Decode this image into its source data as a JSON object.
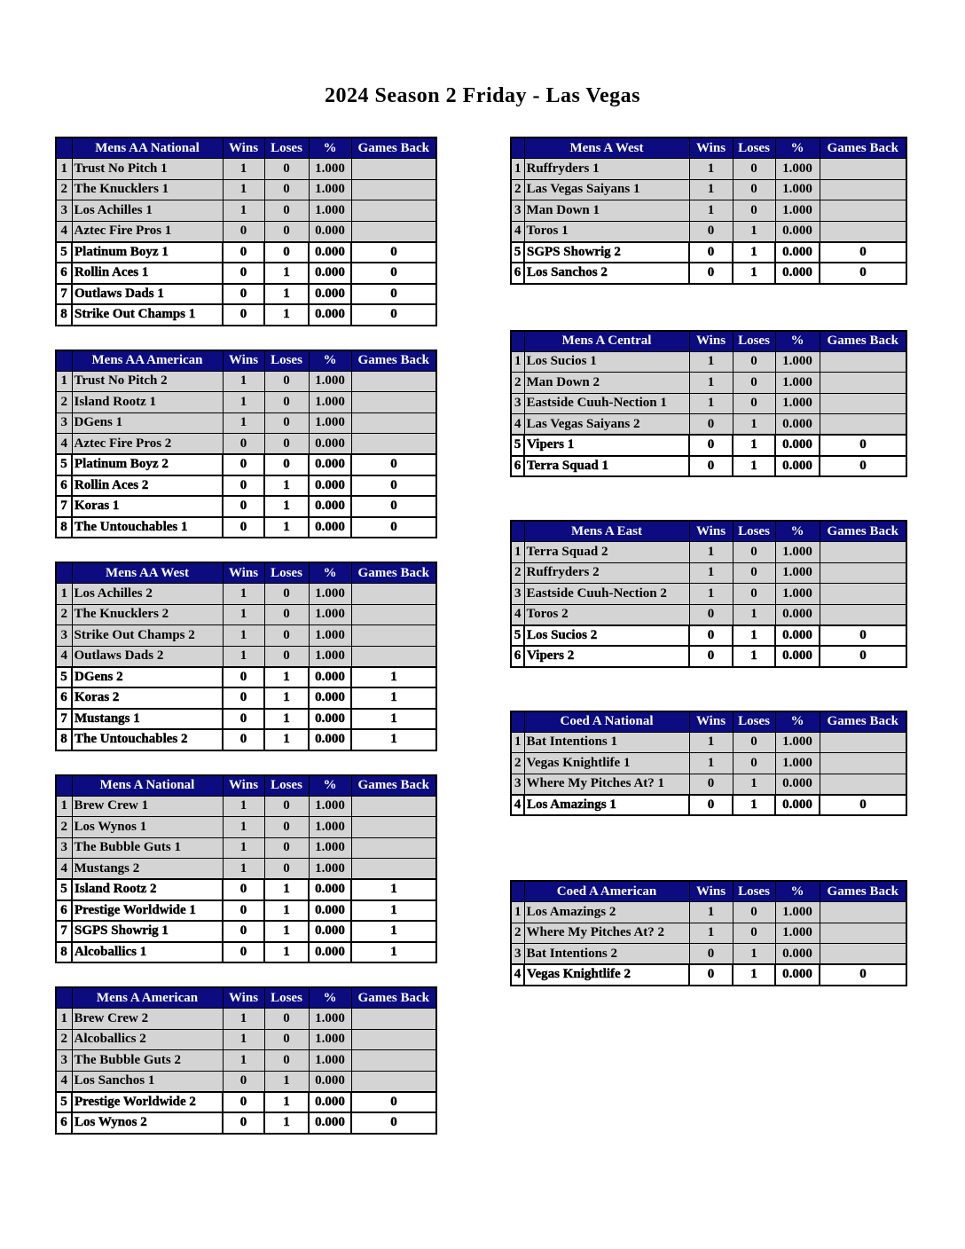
{
  "title": "2024 Season 2 Friday - Las Vegas",
  "columns": {
    "wins": "Wins",
    "loses": "Loses",
    "pct": "%",
    "games_back": "Games Back"
  },
  "colors": {
    "header_bg": "#0c0c80",
    "header_text": "#ffffff",
    "shaded_row_bg": "#d4d4d4",
    "unshaded_row_bg": "#ffffff",
    "border": "#000000"
  },
  "left_tables": [
    {
      "name": "Mens AA National",
      "rows": [
        {
          "rank": "1",
          "team": "Trust No Pitch 1",
          "wins": "1",
          "loses": "0",
          "pct": "1.000",
          "gb": "",
          "shaded": true
        },
        {
          "rank": "2",
          "team": "The Knucklers 1",
          "wins": "1",
          "loses": "0",
          "pct": "1.000",
          "gb": "",
          "shaded": true
        },
        {
          "rank": "3",
          "team": "Los Achilles 1",
          "wins": "1",
          "loses": "0",
          "pct": "1.000",
          "gb": "",
          "shaded": true
        },
        {
          "rank": "4",
          "team": "Aztec Fire Pros 1",
          "wins": "0",
          "loses": "0",
          "pct": "0.000",
          "gb": "",
          "shaded": true
        },
        {
          "rank": "5",
          "team": "Platinum Boyz 1",
          "wins": "0",
          "loses": "0",
          "pct": "0.000",
          "gb": "0",
          "shaded": false
        },
        {
          "rank": "6",
          "team": "Rollin Aces 1",
          "wins": "0",
          "loses": "1",
          "pct": "0.000",
          "gb": "0",
          "shaded": false
        },
        {
          "rank": "7",
          "team": "Outlaws Dads 1",
          "wins": "0",
          "loses": "1",
          "pct": "0.000",
          "gb": "0",
          "shaded": false
        },
        {
          "rank": "8",
          "team": "Strike Out Champs 1",
          "wins": "0",
          "loses": "1",
          "pct": "0.000",
          "gb": "0",
          "shaded": false
        }
      ]
    },
    {
      "name": "Mens AA American",
      "rows": [
        {
          "rank": "1",
          "team": "Trust No Pitch 2",
          "wins": "1",
          "loses": "0",
          "pct": "1.000",
          "gb": "",
          "shaded": true
        },
        {
          "rank": "2",
          "team": "Island Rootz 1",
          "wins": "1",
          "loses": "0",
          "pct": "1.000",
          "gb": "",
          "shaded": true
        },
        {
          "rank": "3",
          "team": "DGens 1",
          "wins": "1",
          "loses": "0",
          "pct": "1.000",
          "gb": "",
          "shaded": true
        },
        {
          "rank": "4",
          "team": "Aztec Fire Pros 2",
          "wins": "0",
          "loses": "0",
          "pct": "0.000",
          "gb": "",
          "shaded": true
        },
        {
          "rank": "5",
          "team": "Platinum Boyz 2",
          "wins": "0",
          "loses": "0",
          "pct": "0.000",
          "gb": "0",
          "shaded": false
        },
        {
          "rank": "6",
          "team": "Rollin Aces 2",
          "wins": "0",
          "loses": "1",
          "pct": "0.000",
          "gb": "0",
          "shaded": false
        },
        {
          "rank": "7",
          "team": "Koras 1",
          "wins": "0",
          "loses": "1",
          "pct": "0.000",
          "gb": "0",
          "shaded": false
        },
        {
          "rank": "8",
          "team": "The Untouchables 1",
          "wins": "0",
          "loses": "1",
          "pct": "0.000",
          "gb": "0",
          "shaded": false
        }
      ]
    },
    {
      "name": "Mens AA West",
      "rows": [
        {
          "rank": "1",
          "team": "Los Achilles 2",
          "wins": "1",
          "loses": "0",
          "pct": "1.000",
          "gb": "",
          "shaded": true
        },
        {
          "rank": "2",
          "team": "The Knucklers 2",
          "wins": "1",
          "loses": "0",
          "pct": "1.000",
          "gb": "",
          "shaded": true
        },
        {
          "rank": "3",
          "team": "Strike Out Champs 2",
          "wins": "1",
          "loses": "0",
          "pct": "1.000",
          "gb": "",
          "shaded": true
        },
        {
          "rank": "4",
          "team": "Outlaws Dads 2",
          "wins": "1",
          "loses": "0",
          "pct": "1.000",
          "gb": "",
          "shaded": true
        },
        {
          "rank": "5",
          "team": "DGens 2",
          "wins": "0",
          "loses": "1",
          "pct": "0.000",
          "gb": "1",
          "shaded": false
        },
        {
          "rank": "6",
          "team": "Koras 2",
          "wins": "0",
          "loses": "1",
          "pct": "0.000",
          "gb": "1",
          "shaded": false
        },
        {
          "rank": "7",
          "team": "Mustangs 1",
          "wins": "0",
          "loses": "1",
          "pct": "0.000",
          "gb": "1",
          "shaded": false
        },
        {
          "rank": "8",
          "team": "The Untouchables 2",
          "wins": "0",
          "loses": "1",
          "pct": "0.000",
          "gb": "1",
          "shaded": false
        }
      ]
    },
    {
      "name": "Mens A National",
      "rows": [
        {
          "rank": "1",
          "team": "Brew Crew 1",
          "wins": "1",
          "loses": "0",
          "pct": "1.000",
          "gb": "",
          "shaded": true
        },
        {
          "rank": "2",
          "team": "Los Wynos 1",
          "wins": "1",
          "loses": "0",
          "pct": "1.000",
          "gb": "",
          "shaded": true
        },
        {
          "rank": "3",
          "team": "The Bubble Guts 1",
          "wins": "1",
          "loses": "0",
          "pct": "1.000",
          "gb": "",
          "shaded": true
        },
        {
          "rank": "4",
          "team": "Mustangs 2",
          "wins": "1",
          "loses": "0",
          "pct": "1.000",
          "gb": "",
          "shaded": true
        },
        {
          "rank": "5",
          "team": "Island Rootz 2",
          "wins": "0",
          "loses": "1",
          "pct": "0.000",
          "gb": "1",
          "shaded": false
        },
        {
          "rank": "6",
          "team": "Prestige Worldwide 1",
          "wins": "0",
          "loses": "1",
          "pct": "0.000",
          "gb": "1",
          "shaded": false
        },
        {
          "rank": "7",
          "team": "SGPS Showrig 1",
          "wins": "0",
          "loses": "1",
          "pct": "0.000",
          "gb": "1",
          "shaded": false
        },
        {
          "rank": "8",
          "team": "Alcoballics 1",
          "wins": "0",
          "loses": "1",
          "pct": "0.000",
          "gb": "1",
          "shaded": false
        }
      ]
    },
    {
      "name": "Mens A American",
      "rows": [
        {
          "rank": "1",
          "team": "Brew Crew 2",
          "wins": "1",
          "loses": "0",
          "pct": "1.000",
          "gb": "",
          "shaded": true
        },
        {
          "rank": "2",
          "team": "Alcoballics 2",
          "wins": "1",
          "loses": "0",
          "pct": "1.000",
          "gb": "",
          "shaded": true
        },
        {
          "rank": "3",
          "team": "The Bubble Guts 2",
          "wins": "1",
          "loses": "0",
          "pct": "1.000",
          "gb": "",
          "shaded": true
        },
        {
          "rank": "4",
          "team": "Los Sanchos 1",
          "wins": "0",
          "loses": "1",
          "pct": "0.000",
          "gb": "",
          "shaded": true
        },
        {
          "rank": "5",
          "team": "Prestige Worldwide 2",
          "wins": "0",
          "loses": "1",
          "pct": "0.000",
          "gb": "0",
          "shaded": false
        },
        {
          "rank": "6",
          "team": "Los Wynos 2",
          "wins": "0",
          "loses": "1",
          "pct": "0.000",
          "gb": "0",
          "shaded": false
        }
      ]
    }
  ],
  "right_tables": [
    {
      "name": "Mens A West",
      "rows": [
        {
          "rank": "1",
          "team": "Ruffryders 1",
          "wins": "1",
          "loses": "0",
          "pct": "1.000",
          "gb": "",
          "shaded": true
        },
        {
          "rank": "2",
          "team": "Las Vegas Saiyans 1",
          "wins": "1",
          "loses": "0",
          "pct": "1.000",
          "gb": "",
          "shaded": true
        },
        {
          "rank": "3",
          "team": "Man Down 1",
          "wins": "1",
          "loses": "0",
          "pct": "1.000",
          "gb": "",
          "shaded": true
        },
        {
          "rank": "4",
          "team": "Toros 1",
          "wins": "0",
          "loses": "1",
          "pct": "0.000",
          "gb": "",
          "shaded": true
        },
        {
          "rank": "5",
          "team": "SGPS Showrig 2",
          "wins": "0",
          "loses": "1",
          "pct": "0.000",
          "gb": "0",
          "shaded": false
        },
        {
          "rank": "6",
          "team": "Los Sanchos 2",
          "wins": "0",
          "loses": "1",
          "pct": "0.000",
          "gb": "0",
          "shaded": false
        }
      ]
    },
    {
      "name": "Mens A Central",
      "rows": [
        {
          "rank": "1",
          "team": "Los Sucios 1",
          "wins": "1",
          "loses": "0",
          "pct": "1.000",
          "gb": "",
          "shaded": true
        },
        {
          "rank": "2",
          "team": "Man Down 2",
          "wins": "1",
          "loses": "0",
          "pct": "1.000",
          "gb": "",
          "shaded": true
        },
        {
          "rank": "3",
          "team": "Eastside Cuuh-Nection 1",
          "wins": "1",
          "loses": "0",
          "pct": "1.000",
          "gb": "",
          "shaded": true
        },
        {
          "rank": "4",
          "team": "Las Vegas Saiyans 2",
          "wins": "0",
          "loses": "1",
          "pct": "0.000",
          "gb": "",
          "shaded": true
        },
        {
          "rank": "5",
          "team": "Vipers 1",
          "wins": "0",
          "loses": "1",
          "pct": "0.000",
          "gb": "0",
          "shaded": false
        },
        {
          "rank": "6",
          "team": "Terra Squad 1",
          "wins": "0",
          "loses": "1",
          "pct": "0.000",
          "gb": "0",
          "shaded": false
        }
      ]
    },
    {
      "name": "Mens A East",
      "rows": [
        {
          "rank": "1",
          "team": "Terra Squad 2",
          "wins": "1",
          "loses": "0",
          "pct": "1.000",
          "gb": "",
          "shaded": true
        },
        {
          "rank": "2",
          "team": "Ruffryders 2",
          "wins": "1",
          "loses": "0",
          "pct": "1.000",
          "gb": "",
          "shaded": true
        },
        {
          "rank": "3",
          "team": "Eastside Cuuh-Nection 2",
          "wins": "1",
          "loses": "0",
          "pct": "1.000",
          "gb": "",
          "shaded": true
        },
        {
          "rank": "4",
          "team": "Toros 2",
          "wins": "0",
          "loses": "1",
          "pct": "0.000",
          "gb": "",
          "shaded": true
        },
        {
          "rank": "5",
          "team": "Los Sucios 2",
          "wins": "0",
          "loses": "1",
          "pct": "0.000",
          "gb": "0",
          "shaded": false
        },
        {
          "rank": "6",
          "team": "Vipers 2",
          "wins": "0",
          "loses": "1",
          "pct": "0.000",
          "gb": "0",
          "shaded": false
        }
      ]
    },
    {
      "name": "Coed A National",
      "rows": [
        {
          "rank": "1",
          "team": "Bat Intentions 1",
          "wins": "1",
          "loses": "0",
          "pct": "1.000",
          "gb": "",
          "shaded": true
        },
        {
          "rank": "2",
          "team": "Vegas Knightlife 1",
          "wins": "1",
          "loses": "0",
          "pct": "1.000",
          "gb": "",
          "shaded": true
        },
        {
          "rank": "3",
          "team": "Where My Pitches At? 1",
          "wins": "0",
          "loses": "1",
          "pct": "0.000",
          "gb": "",
          "shaded": true
        },
        {
          "rank": "4",
          "team": "Los Amazings 1",
          "wins": "0",
          "loses": "1",
          "pct": "0.000",
          "gb": "0",
          "shaded": false
        }
      ]
    },
    {
      "name": "Coed A American",
      "rows": [
        {
          "rank": "1",
          "team": "Los Amazings 2",
          "wins": "1",
          "loses": "0",
          "pct": "1.000",
          "gb": "",
          "shaded": true
        },
        {
          "rank": "2",
          "team": "Where My Pitches At? 2",
          "wins": "1",
          "loses": "0",
          "pct": "1.000",
          "gb": "",
          "shaded": true
        },
        {
          "rank": "3",
          "team": "Bat Intentions 2",
          "wins": "0",
          "loses": "1",
          "pct": "0.000",
          "gb": "",
          "shaded": true
        },
        {
          "rank": "4",
          "team": "Vegas Knightlife 2",
          "wins": "0",
          "loses": "1",
          "pct": "0.000",
          "gb": "0",
          "shaded": false
        }
      ]
    }
  ]
}
